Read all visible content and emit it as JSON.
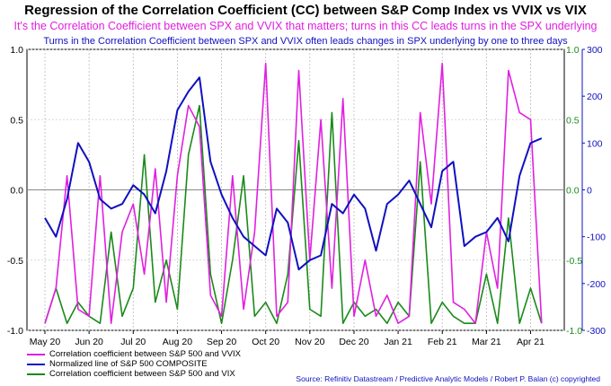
{
  "title": "Regression of the Correlation Coefficient (CC) between S&P Comp Index vs VVIX vs VIX",
  "subtitle_1": "It's the Correlation Coefficient between SPX and VVIX that matters; turns in this CC leads turns in the SPX underlying",
  "subtitle_2": "Turns in the Correlation Coefficient between SPX and VVIX often leads changes in SPX underlying by one to three days",
  "credit": "Source: Refinitiv Datastream / Predictive Analytic Models / Robert P. Balan (c) copyrighted",
  "colors": {
    "vvix": "#e020e0",
    "spx": "#1010c0",
    "vix": "#1a8a1a",
    "left_axis": "#000000",
    "right_green_axis": "#1a8a1a",
    "right_blue_axis": "#1010c0"
  },
  "legend": [
    {
      "label": "Correlation coefficient between S&P 500 and VVIX",
      "color": "#e020e0"
    },
    {
      "label": "Normalized line of S&P 500 COMPOSITE",
      "color": "#1010c0"
    },
    {
      "label": "Correlation coefficient between S&P 500 and VIX",
      "color": "#1a8a1a"
    }
  ],
  "chart_data": {
    "type": "line",
    "grid": true,
    "legend_position": "bottom-left",
    "x_tick_labels": [
      "May 20",
      "Jun 20",
      "Jul 20",
      "Aug 20",
      "Sep 20",
      "Oct 20",
      "Nov 20",
      "Dec 20",
      "Jan 21",
      "Feb 21",
      "Mar 21",
      "Apr 21"
    ],
    "y_left": {
      "ylim": [
        -1.0,
        1.0
      ],
      "ticks": [
        "1.0",
        "0.5",
        "0.0",
        "-0.5",
        "-1.0"
      ]
    },
    "y_right_green": {
      "ylim": [
        -1.0,
        1.0
      ],
      "ticks": [
        "1.0",
        "0.5",
        "0.0",
        "-0.5",
        "-1.0"
      ]
    },
    "y_right_blue": {
      "ylim": [
        -300,
        300
      ],
      "ticks": [
        "300",
        "200",
        "100",
        "0",
        "-100",
        "-200",
        "-300"
      ]
    },
    "series": [
      {
        "name": "Correlation coefficient between S&P 500 and VVIX",
        "axis": "left",
        "x_month_index": [
          0.0,
          0.25,
          0.5,
          0.75,
          1.0,
          1.25,
          1.5,
          1.75,
          2.0,
          2.25,
          2.5,
          2.75,
          3.0,
          3.25,
          3.5,
          3.75,
          4.0,
          4.25,
          4.5,
          4.75,
          5.0,
          5.25,
          5.5,
          5.75,
          6.0,
          6.25,
          6.5,
          6.75,
          7.0,
          7.25,
          7.5,
          7.75,
          8.0,
          8.25,
          8.5,
          8.75,
          9.0,
          9.25,
          9.5,
          9.75,
          10.0,
          10.25,
          10.5,
          10.75,
          11.0,
          11.25
        ],
        "values": [
          -0.95,
          -0.7,
          0.1,
          -0.85,
          -0.9,
          0.1,
          -0.95,
          -0.3,
          -0.1,
          -0.6,
          0.15,
          -0.8,
          0.1,
          0.6,
          0.45,
          -0.75,
          -0.9,
          0.1,
          -0.85,
          -0.3,
          0.9,
          -0.9,
          -0.8,
          0.85,
          -0.5,
          0.5,
          -0.7,
          0.65,
          -0.9,
          -0.5,
          -0.9,
          -0.75,
          -0.95,
          -0.9,
          0.55,
          -0.1,
          0.9,
          -0.8,
          -0.85,
          -0.95,
          -0.3,
          -0.7,
          0.85,
          0.55,
          0.5,
          -0.95
        ]
      },
      {
        "name": "Normalized line of S&P 500 COMPOSITE",
        "axis": "right_blue",
        "x_month_index": [
          0.0,
          0.25,
          0.5,
          0.75,
          1.0,
          1.25,
          1.5,
          1.75,
          2.0,
          2.25,
          2.5,
          2.75,
          3.0,
          3.25,
          3.5,
          3.75,
          4.0,
          4.25,
          4.5,
          4.75,
          5.0,
          5.25,
          5.5,
          5.75,
          6.0,
          6.25,
          6.5,
          6.75,
          7.0,
          7.25,
          7.5,
          7.75,
          8.0,
          8.25,
          8.5,
          8.75,
          9.0,
          9.25,
          9.5,
          9.75,
          10.0,
          10.25,
          10.5,
          10.75,
          11.0,
          11.25
        ],
        "values": [
          -60,
          -100,
          -20,
          100,
          60,
          -20,
          -40,
          -30,
          10,
          -10,
          -50,
          40,
          170,
          210,
          240,
          60,
          -10,
          -60,
          -100,
          -120,
          -140,
          -40,
          -70,
          -170,
          -150,
          -140,
          -30,
          -50,
          -10,
          -40,
          -130,
          -30,
          -10,
          20,
          -30,
          -80,
          40,
          60,
          -120,
          -100,
          -90,
          -60,
          -110,
          30,
          100,
          110
        ]
      },
      {
        "name": "Correlation coefficient between S&P 500 and VIX",
        "axis": "right_green",
        "x_month_index": [
          0.0,
          0.25,
          0.5,
          0.75,
          1.0,
          1.25,
          1.5,
          1.75,
          2.0,
          2.25,
          2.5,
          2.75,
          3.0,
          3.25,
          3.5,
          3.75,
          4.0,
          4.25,
          4.5,
          4.75,
          5.0,
          5.25,
          5.5,
          5.75,
          6.0,
          6.25,
          6.5,
          6.75,
          7.0,
          7.25,
          7.5,
          7.75,
          8.0,
          8.25,
          8.5,
          8.75,
          9.0,
          9.25,
          9.5,
          9.75,
          10.0,
          10.25,
          10.5,
          10.75,
          11.0,
          11.25
        ],
        "values": [
          -0.95,
          -0.7,
          -0.95,
          -0.8,
          -0.9,
          -0.95,
          -0.3,
          -0.9,
          -0.7,
          0.25,
          -0.8,
          -0.5,
          -0.85,
          0.25,
          0.6,
          -0.6,
          -0.95,
          -0.5,
          0.1,
          -0.9,
          -0.8,
          -0.95,
          -0.6,
          0.35,
          -0.85,
          -0.9,
          0.55,
          -0.95,
          -0.8,
          -0.9,
          -0.85,
          -0.95,
          -0.8,
          -0.9,
          0.2,
          -0.95,
          -0.8,
          -0.9,
          -0.95,
          -0.95,
          -0.6,
          -0.95,
          -0.2,
          -0.95,
          -0.7,
          -0.95
        ]
      }
    ]
  }
}
